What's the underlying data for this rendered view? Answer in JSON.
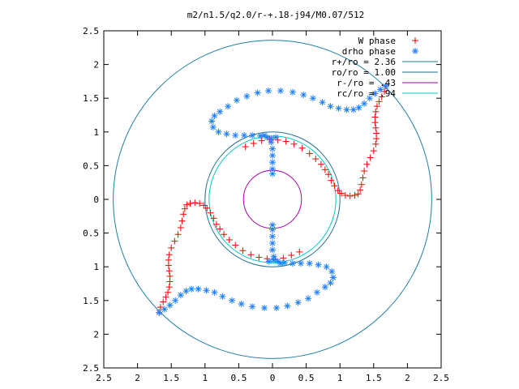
{
  "chart_data": {
    "type": "scatter",
    "title": "m2/n1.5/q2.0/r-+.18-j94/M0.07/512",
    "xlabel": "",
    "ylabel": "",
    "xlim": [
      -2.5,
      2.5
    ],
    "ylim": [
      -2.5,
      2.5
    ],
    "x_ticks": [
      -2.5,
      -2,
      -1.5,
      -1,
      -0.5,
      0,
      0.5,
      1,
      1.5,
      2,
      2.5
    ],
    "y_ticks": [
      -2.5,
      -2,
      -1.5,
      -1,
      -0.5,
      0,
      0.5,
      1,
      1.5,
      2,
      2.5
    ],
    "x_tick_labels": [
      "2.5",
      "2",
      "1.5",
      "1",
      "0.5",
      "0",
      "0.5",
      "1",
      "1.5",
      "2",
      "2.5"
    ],
    "y_tick_labels": [
      "2.5",
      "2",
      "1.5",
      "1",
      "0.5",
      "0",
      "0.5",
      "1",
      "1.5",
      "2",
      "2.5"
    ],
    "grid": false,
    "legend_position": "top-right",
    "series": [
      {
        "name": "W phase",
        "marker": "+",
        "color": "#ff0000",
        "points": [
          [
            1.68,
            1.68
          ],
          [
            1.66,
            1.6
          ],
          [
            1.62,
            1.52
          ],
          [
            1.58,
            1.45
          ],
          [
            1.55,
            1.38
          ],
          [
            1.53,
            1.3
          ],
          [
            1.52,
            1.22
          ],
          [
            1.52,
            1.14
          ],
          [
            1.53,
            1.06
          ],
          [
            1.54,
            0.98
          ],
          [
            1.54,
            0.9
          ],
          [
            1.53,
            0.82
          ],
          [
            1.5,
            0.72
          ],
          [
            1.45,
            0.62
          ],
          [
            1.4,
            0.52
          ],
          [
            1.36,
            0.42
          ],
          [
            1.34,
            0.32
          ],
          [
            1.32,
            0.22
          ],
          [
            1.3,
            0.14
          ],
          [
            1.27,
            0.08
          ],
          [
            1.22,
            0.06
          ],
          [
            1.15,
            0.05
          ],
          [
            1.08,
            0.06
          ],
          [
            1.02,
            0.09
          ],
          [
            0.97,
            0.13
          ],
          [
            -1.68,
            -1.68
          ],
          [
            -1.66,
            -1.6
          ],
          [
            -1.62,
            -1.52
          ],
          [
            -1.58,
            -1.45
          ],
          [
            -1.55,
            -1.38
          ],
          [
            -1.53,
            -1.3
          ],
          [
            -1.52,
            -1.22
          ],
          [
            -1.52,
            -1.14
          ],
          [
            -1.53,
            -1.06
          ],
          [
            -1.54,
            -0.98
          ],
          [
            -1.54,
            -0.9
          ],
          [
            -1.53,
            -0.82
          ],
          [
            -1.5,
            -0.72
          ],
          [
            -1.45,
            -0.62
          ],
          [
            -1.4,
            -0.52
          ],
          [
            -1.36,
            -0.42
          ],
          [
            -1.34,
            -0.32
          ],
          [
            -1.32,
            -0.22
          ],
          [
            -1.3,
            -0.14
          ],
          [
            -1.27,
            -0.08
          ],
          [
            -1.22,
            -0.06
          ],
          [
            -1.15,
            -0.05
          ],
          [
            -1.08,
            -0.06
          ],
          [
            -1.02,
            -0.09
          ],
          [
            -0.97,
            -0.13
          ],
          [
            0.92,
            0.2
          ],
          [
            0.87,
            0.28
          ],
          [
            0.83,
            0.37
          ],
          [
            0.78,
            0.44
          ],
          [
            0.72,
            0.52
          ],
          [
            0.64,
            0.6
          ],
          [
            0.55,
            0.68
          ],
          [
            0.44,
            0.76
          ],
          [
            0.32,
            0.82
          ],
          [
            0.2,
            0.86
          ],
          [
            0.08,
            0.88
          ],
          [
            -0.04,
            0.89
          ],
          [
            -0.16,
            0.87
          ],
          [
            -0.28,
            0.83
          ],
          [
            -0.4,
            0.78
          ],
          [
            -0.92,
            -0.2
          ],
          [
            -0.87,
            -0.28
          ],
          [
            -0.83,
            -0.37
          ],
          [
            -0.78,
            -0.44
          ],
          [
            -0.72,
            -0.52
          ],
          [
            -0.64,
            -0.6
          ],
          [
            -0.55,
            -0.68
          ],
          [
            -0.44,
            -0.76
          ],
          [
            -0.32,
            -0.82
          ],
          [
            -0.2,
            -0.86
          ],
          [
            -0.08,
            -0.88
          ],
          [
            0.04,
            -0.89
          ],
          [
            0.16,
            -0.87
          ],
          [
            0.28,
            -0.83
          ],
          [
            0.4,
            -0.78
          ]
        ]
      },
      {
        "name": "drho phase",
        "marker": "*",
        "color": "#1f7fff",
        "points": [
          [
            -1.68,
            -1.68
          ],
          [
            -1.6,
            -1.63
          ],
          [
            -1.52,
            -1.57
          ],
          [
            -1.44,
            -1.5
          ],
          [
            -1.36,
            -1.42
          ],
          [
            -1.28,
            -1.36
          ],
          [
            -1.2,
            -1.33
          ],
          [
            -1.1,
            -1.33
          ],
          [
            -0.98,
            -1.35
          ],
          [
            -0.86,
            -1.38
          ],
          [
            -0.74,
            -1.44
          ],
          [
            -0.6,
            -1.5
          ],
          [
            -0.46,
            -1.55
          ],
          [
            -0.3,
            -1.59
          ],
          [
            -0.12,
            -1.61
          ],
          [
            0.06,
            -1.61
          ],
          [
            0.22,
            -1.58
          ],
          [
            0.38,
            -1.53
          ],
          [
            0.53,
            -1.47
          ],
          [
            0.66,
            -1.38
          ],
          [
            0.78,
            -1.3
          ],
          [
            0.86,
            -1.24
          ],
          [
            0.9,
            -1.16
          ],
          [
            0.88,
            -1.07
          ],
          [
            0.8,
            -1.0
          ],
          [
            0.68,
            -0.97
          ],
          [
            0.55,
            -0.95
          ],
          [
            0.42,
            -0.95
          ],
          [
            0.3,
            -0.95
          ],
          [
            0.18,
            -0.94
          ],
          [
            0.08,
            -0.92
          ],
          [
            0.02,
            -0.85
          ],
          [
            0.0,
            -0.75
          ],
          [
            0.0,
            -0.65
          ],
          [
            0.0,
            -0.55
          ],
          [
            0.0,
            -0.45
          ],
          [
            0.0,
            -0.38
          ],
          [
            0.02,
            -0.9
          ],
          [
            -0.05,
            -0.92
          ],
          [
            0.12,
            -0.95
          ],
          [
            1.68,
            1.68
          ],
          [
            1.6,
            1.63
          ],
          [
            1.52,
            1.57
          ],
          [
            1.44,
            1.5
          ],
          [
            1.36,
            1.42
          ],
          [
            1.28,
            1.36
          ],
          [
            1.2,
            1.33
          ],
          [
            1.1,
            1.33
          ],
          [
            0.98,
            1.35
          ],
          [
            0.86,
            1.38
          ],
          [
            0.74,
            1.44
          ],
          [
            0.6,
            1.5
          ],
          [
            0.46,
            1.55
          ],
          [
            0.3,
            1.59
          ],
          [
            0.12,
            1.61
          ],
          [
            -0.06,
            1.61
          ],
          [
            -0.22,
            1.58
          ],
          [
            -0.38,
            1.53
          ],
          [
            -0.53,
            1.47
          ],
          [
            -0.66,
            1.38
          ],
          [
            -0.78,
            1.3
          ],
          [
            -0.86,
            1.24
          ],
          [
            -0.9,
            1.16
          ],
          [
            -0.88,
            1.07
          ],
          [
            -0.8,
            1.0
          ],
          [
            -0.68,
            0.97
          ],
          [
            -0.55,
            0.95
          ],
          [
            -0.42,
            0.95
          ],
          [
            -0.3,
            0.95
          ],
          [
            -0.18,
            0.94
          ],
          [
            -0.08,
            0.92
          ],
          [
            -0.02,
            0.85
          ],
          [
            0.0,
            0.75
          ],
          [
            0.0,
            0.65
          ],
          [
            0.0,
            0.55
          ],
          [
            0.0,
            0.45
          ],
          [
            0.0,
            0.38
          ],
          [
            -0.02,
            0.9
          ],
          [
            0.05,
            0.92
          ],
          [
            -0.12,
            0.95
          ]
        ]
      }
    ],
    "circles": [
      {
        "name": "r+/ro = 2.36",
        "radius": 2.36,
        "color": "#1f7fa8"
      },
      {
        "name": "ro/ro = 1.00",
        "radius": 1.0,
        "color": "#1f6f8f"
      },
      {
        "name": "r-/ro = .43",
        "radius": 0.43,
        "color": "#aa00aa"
      },
      {
        "name": "rc/ro = .94",
        "radius": 0.94,
        "color": "#00c8c8"
      }
    ]
  }
}
